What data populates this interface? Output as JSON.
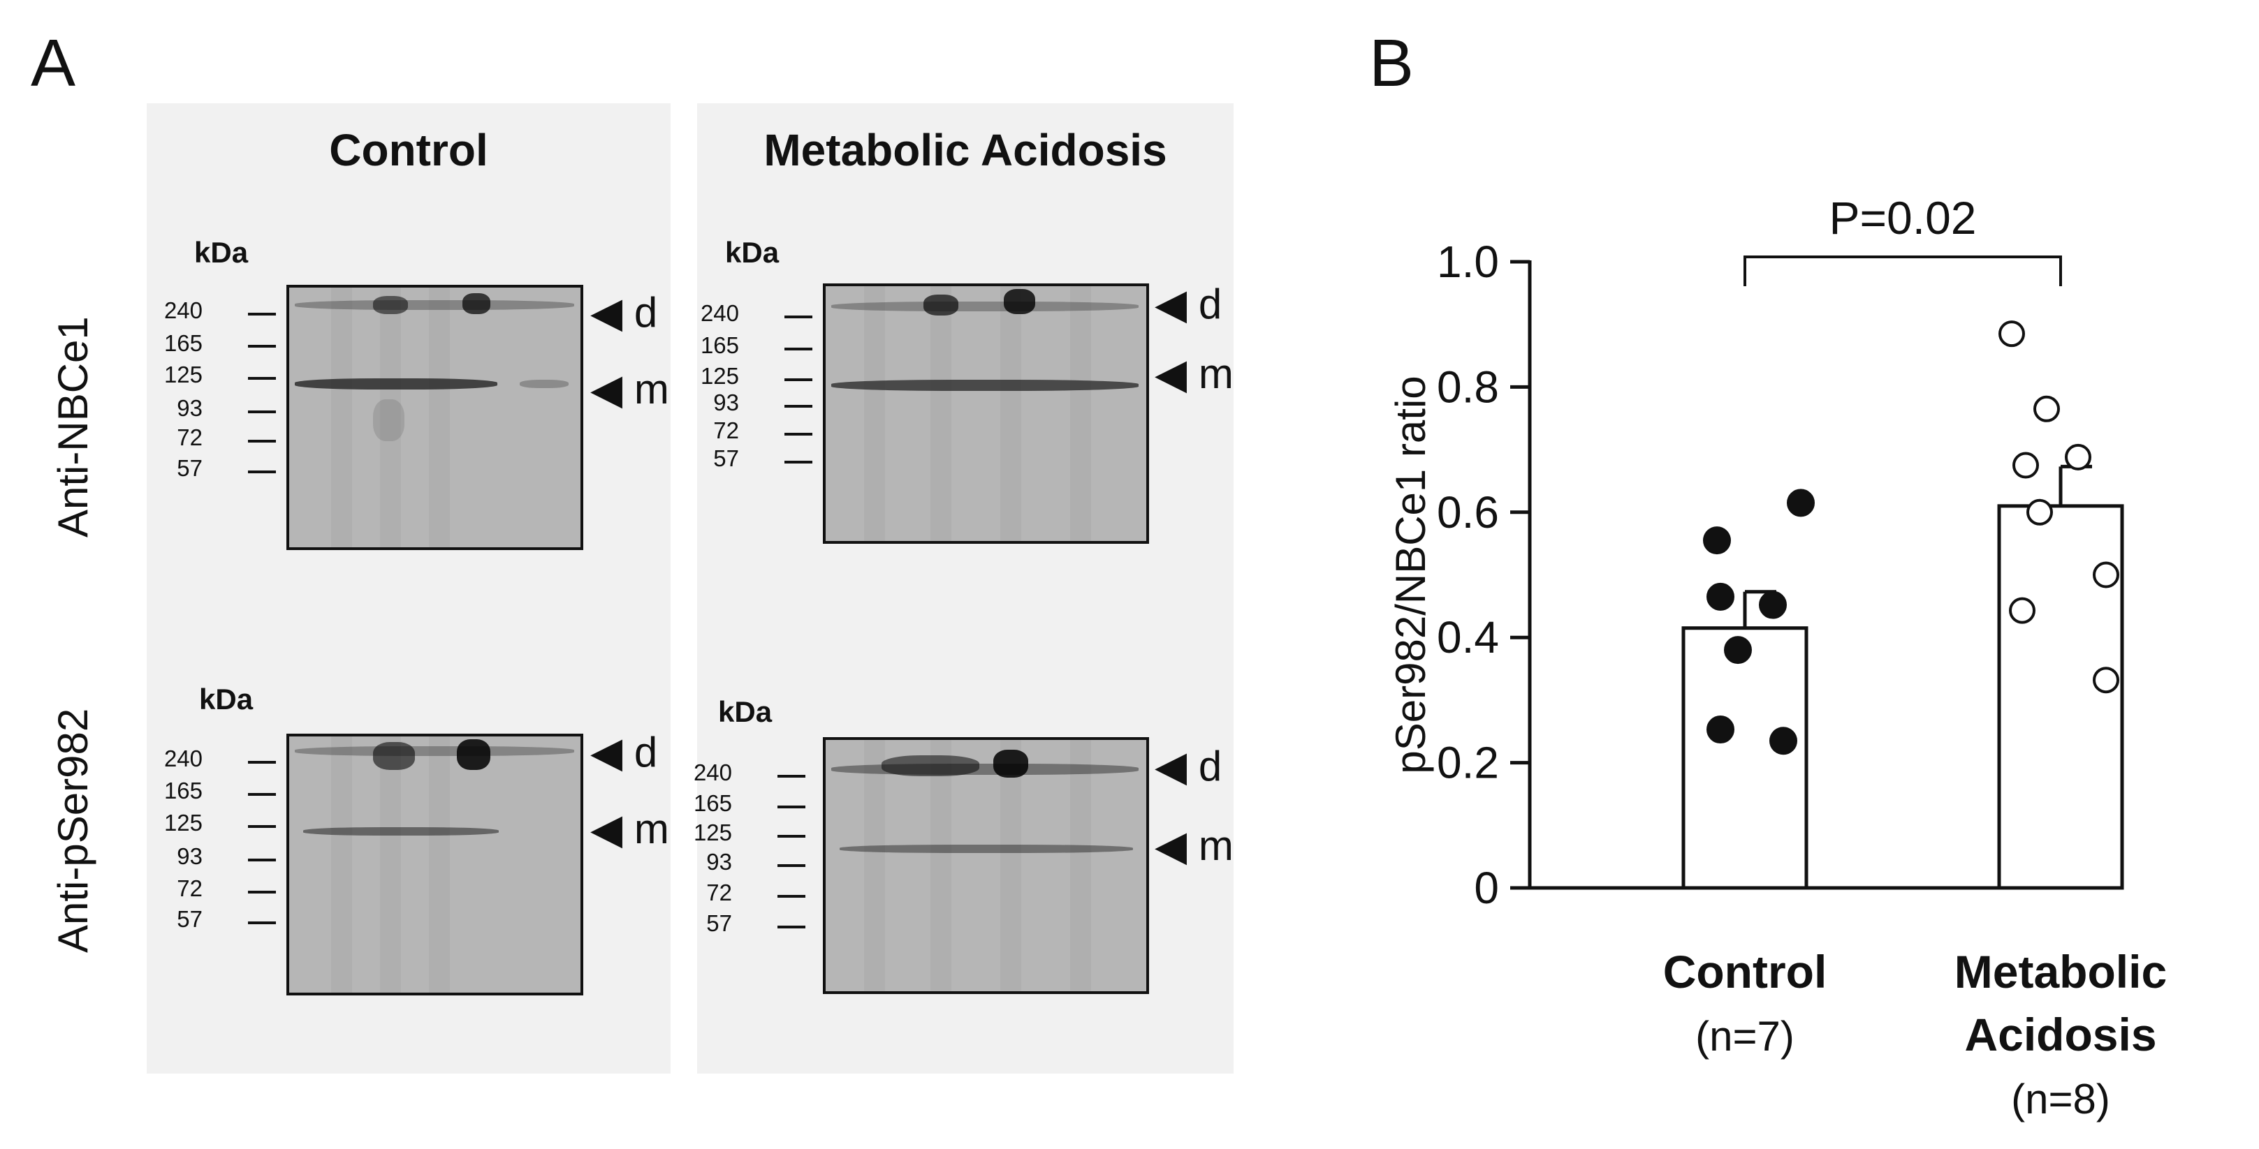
{
  "panel_a": {
    "letter": "A",
    "groups": [
      {
        "title": "Control"
      },
      {
        "title": "Metabolic Acidosis"
      }
    ],
    "row_labels": [
      "Anti-NBCe1",
      "Anti-pSer982"
    ],
    "kda_label": "kDa",
    "markers": [
      "240",
      "165",
      "125",
      "93",
      "72",
      "57"
    ],
    "band_labels": {
      "dimer": "d",
      "monomer": "m"
    }
  },
  "panel_b": {
    "letter": "B"
  },
  "chart_data": {
    "type": "bar",
    "title": "",
    "ylabel": "pSer982/NBCe1 ratio",
    "ylim": [
      0,
      1.0
    ],
    "yticks": [
      "0",
      "0.2",
      "0.4",
      "0.6",
      "0.8",
      "1.0"
    ],
    "grid": false,
    "categories": [
      {
        "line1": "Control",
        "line2": "",
        "n": "(n=7)"
      },
      {
        "line1": "Metabolic",
        "line2": "Acidosis",
        "n": "(n=8)"
      }
    ],
    "values": [
      0.415,
      0.61
    ],
    "errors": [
      0.058,
      0.063
    ],
    "points": [
      [
        0.615,
        0.555,
        0.465,
        0.452,
        0.38,
        0.253,
        0.235
      ],
      [
        0.885,
        0.765,
        0.688,
        0.675,
        0.6,
        0.5,
        0.443,
        0.332
      ]
    ],
    "point_styles": [
      "filled",
      "open"
    ],
    "annotation": "P=0.02"
  }
}
